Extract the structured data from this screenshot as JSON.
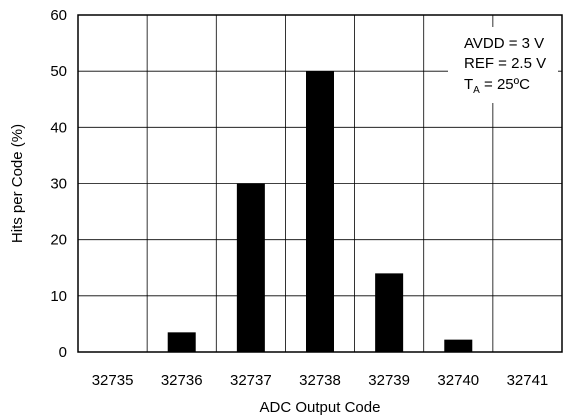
{
  "chart_data": {
    "type": "bar",
    "title": "",
    "xlabel": "ADC Output Code",
    "ylabel": "Hits per Code (%)",
    "categories": [
      "32735",
      "32736",
      "32737",
      "32738",
      "32739",
      "32740",
      "32741"
    ],
    "values": [
      0,
      3.5,
      30,
      50,
      14,
      2.2,
      0
    ],
    "ylim": [
      0,
      60
    ],
    "yticks": [
      "0",
      "10",
      "20",
      "30",
      "40",
      "50",
      "60"
    ],
    "grid": true,
    "bar_color": "#000000",
    "annotation": {
      "line1": "AVDD = 3 V",
      "line2": "REF = 2.5 V",
      "line3_prefix": "T",
      "line3_subscript": "A",
      "line3_suffix": " = 25ºC",
      "placement": "top-right"
    }
  }
}
